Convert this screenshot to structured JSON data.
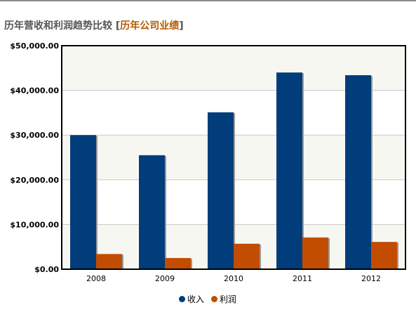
{
  "header": {
    "title": "历年营收和利润趋势比较",
    "bracket_open": "[",
    "link_label": "历年公司业绩",
    "bracket_close": "]"
  },
  "chart_data": {
    "type": "bar",
    "categories": [
      "2008",
      "2009",
      "2010",
      "2011",
      "2012"
    ],
    "series": [
      {
        "name": "收入",
        "color": "#003d7a",
        "values": [
          30000,
          25500,
          35100,
          44000,
          43400
        ]
      },
      {
        "name": "利润",
        "color": "#c24c00",
        "values": [
          3400,
          2500,
          5700,
          7100,
          6100
        ]
      }
    ],
    "yticks": [
      "$0.00",
      "$10,000.00",
      "$20,000.00",
      "$30,000.00",
      "$40,000.00",
      "$50,000.00"
    ],
    "ylim": [
      0,
      50000
    ],
    "grid": true,
    "legend_position": "bottom-center"
  }
}
